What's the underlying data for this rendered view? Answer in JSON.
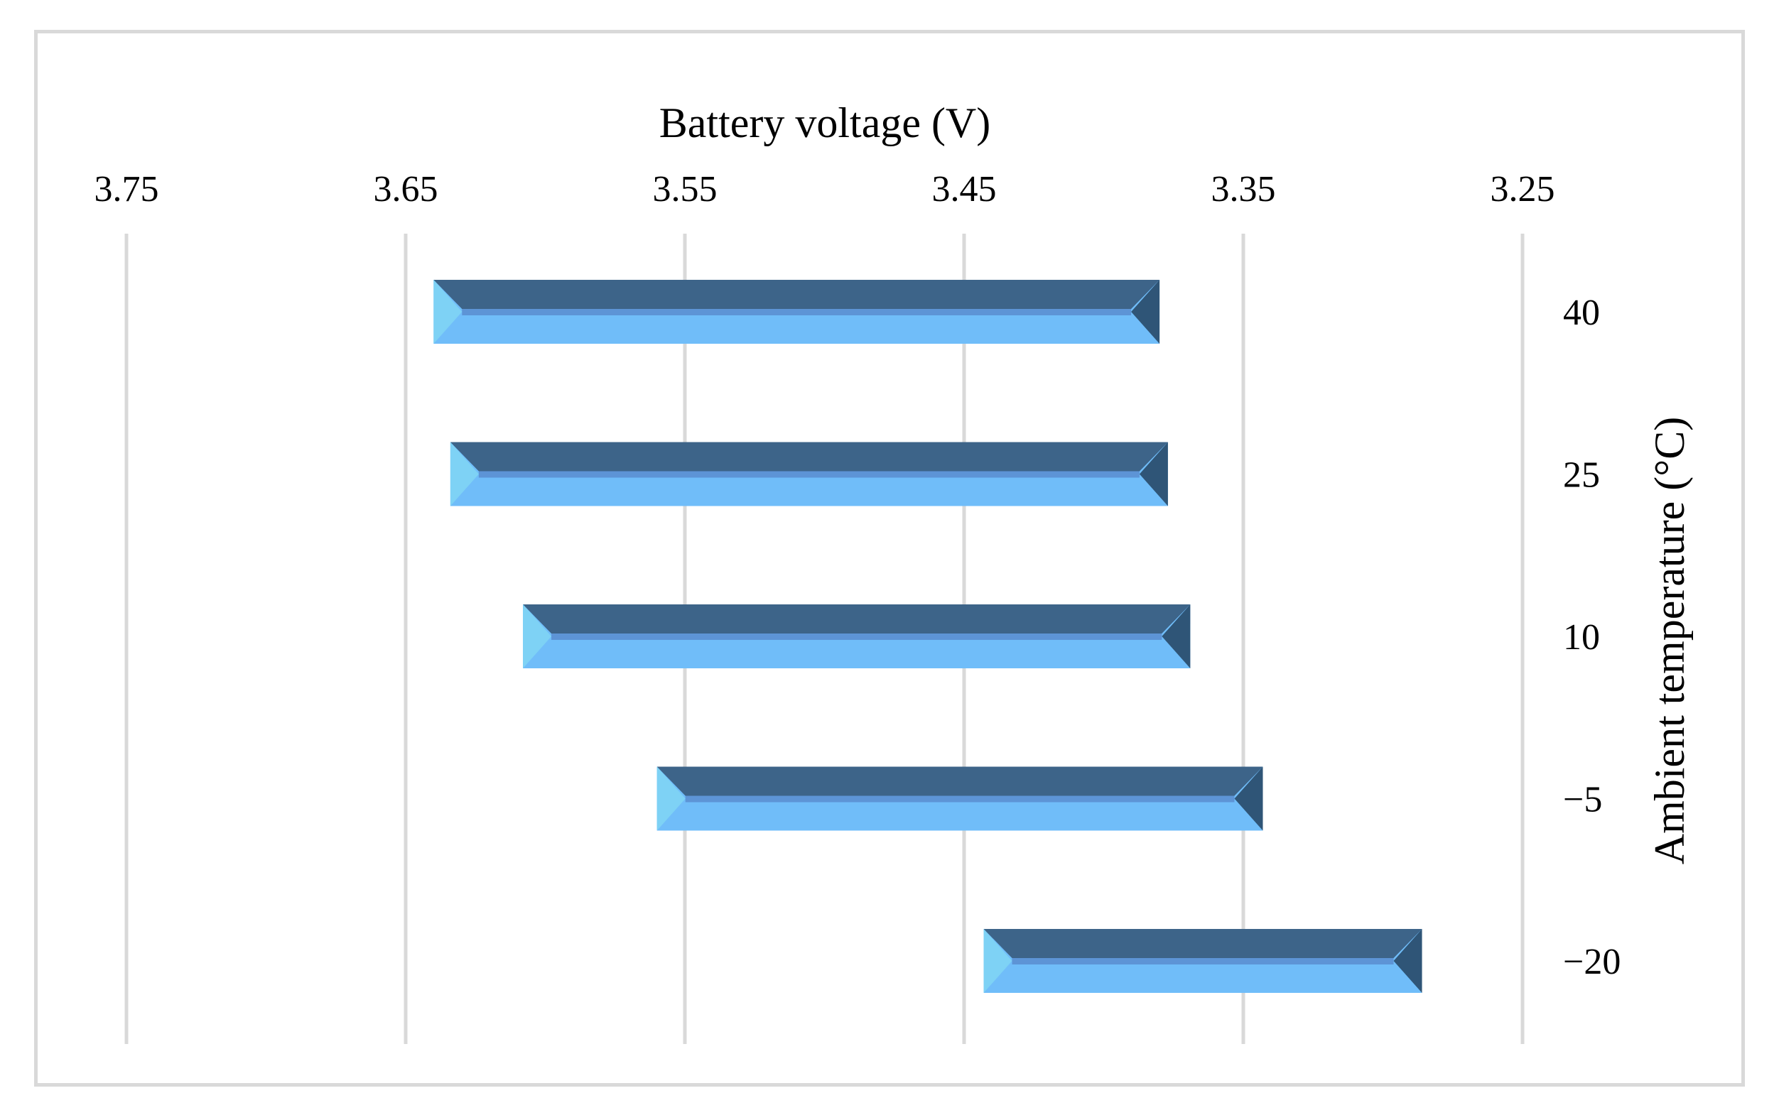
{
  "chart_data": {
    "type": "bar",
    "orientation": "horizontal-floating",
    "xlabel": "Battery voltage (V)",
    "ylabel": "Ambient temperature  (°C)",
    "x_axis_position": "top",
    "y_axis_position": "right",
    "x_reversed": true,
    "xlim": [
      3.25,
      3.75
    ],
    "x_ticks": [
      "3.75",
      "3.65",
      "3.55",
      "3.45",
      "3.35",
      "3.25"
    ],
    "x_tick_values": [
      3.75,
      3.65,
      3.55,
      3.45,
      3.35,
      3.25
    ],
    "categories": [
      "40",
      "25",
      "10",
      "−5",
      "−20"
    ],
    "ranges": [
      {
        "category": "40",
        "high": 3.64,
        "low": 3.38
      },
      {
        "category": "25",
        "high": 3.634,
        "low": 3.377
      },
      {
        "category": "10",
        "high": 3.608,
        "low": 3.369
      },
      {
        "category": "−5",
        "high": 3.56,
        "low": 3.343
      },
      {
        "category": "−20",
        "high": 3.443,
        "low": 3.286
      }
    ],
    "grid": "vertical",
    "legend": "none",
    "colors": {
      "bar_front": "#70bdf9",
      "bar_top": "#3d6489",
      "bar_mid": "#5d94d6",
      "bar_left_bevel": "#7ed2f5",
      "bar_right_bevel": "#2f5577",
      "grid": "#d9d9d9",
      "frame": "#d9d9d9"
    }
  }
}
